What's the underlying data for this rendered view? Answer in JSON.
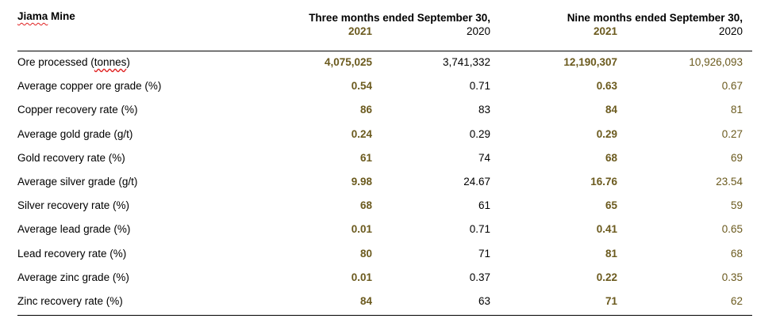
{
  "title_prefix": "Jiama",
  "title_suffix": " Mine",
  "periods": {
    "three": "Three months ended September 30,",
    "nine": "Nine months ended September 30,"
  },
  "years": {
    "three_current": "2021",
    "three_prior": "2020",
    "nine_current": "2021",
    "nine_prior": "2020"
  },
  "rows": [
    {
      "label": "Ore processed (tonnes)",
      "q2021": "4,075,025",
      "q2020": "3,741,332",
      "n2021": "12,190,307",
      "n2020": "10,926,093"
    },
    {
      "label": "Average copper ore grade (%)",
      "q2021": "0.54",
      "q2020": "0.71",
      "n2021": "0.63",
      "n2020": "0.67"
    },
    {
      "label": "Copper recovery rate (%)",
      "q2021": "86",
      "q2020": "83",
      "n2021": "84",
      "n2020": "81"
    },
    {
      "label": "Average gold grade (g/t)",
      "q2021": "0.24",
      "q2020": "0.29",
      "n2021": "0.29",
      "n2020": "0.27"
    },
    {
      "label": "Gold recovery rate (%)",
      "q2021": "61",
      "q2020": "74",
      "n2021": "68",
      "n2020": "69"
    },
    {
      "label": "Average silver grade (g/t)",
      "q2021": "9.98",
      "q2020": "24.67",
      "n2021": "16.76",
      "n2020": "23.54"
    },
    {
      "label": "Silver recovery rate (%)",
      "q2021": "68",
      "q2020": "61",
      "n2021": "65",
      "n2020": "59"
    },
    {
      "label": "Average lead grade (%)",
      "q2021": "0.01",
      "q2020": "0.71",
      "n2021": "0.41",
      "n2020": "0.65"
    },
    {
      "label": "Lead recovery rate (%)",
      "q2021": "80",
      "q2020": "71",
      "n2021": "81",
      "n2020": "68"
    },
    {
      "label": "Average zinc grade (%)",
      "q2021": "0.01",
      "q2020": "0.37",
      "n2021": "0.22",
      "n2020": "0.35"
    },
    {
      "label": "Zinc recovery rate (%)",
      "q2021": "84",
      "q2020": "63",
      "n2021": "71",
      "n2020": "62"
    }
  ],
  "colors": {
    "highlight": "#6b5a1e",
    "text": "#000000",
    "spellcheck_underline": "#e02020"
  }
}
